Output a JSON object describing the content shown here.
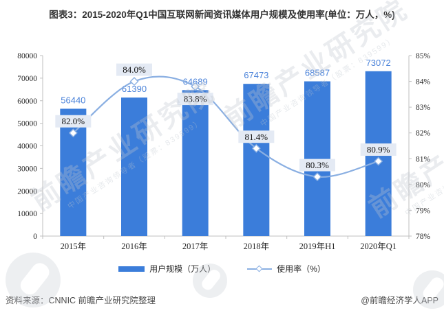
{
  "title": "图表3：2015-2020年Q1中国互联网新闻资讯媒体用户规模及使用率(单位：万人，%)",
  "chart_data": {
    "type": "combo",
    "title": "图表3：2015-2020年Q1中国互联网新闻资讯媒体用户规模及使用率(单位：万人，%)",
    "categories": [
      "2015年",
      "2016年",
      "2017年",
      "2018年",
      "2019年H1",
      "2020年Q1"
    ],
    "series": [
      {
        "name": "用户规模（万人）",
        "type": "bar",
        "axis": "left",
        "color": "#3b7dda",
        "values": [
          56440,
          61390,
          64689,
          67473,
          68587,
          73072
        ],
        "value_labels": [
          "56440",
          "61390",
          "64689",
          "67473",
          "68587",
          "73072"
        ]
      },
      {
        "name": "使用率（%）",
        "type": "line",
        "axis": "right",
        "color": "#8aafe2",
        "marker": "diamond",
        "values": [
          82.0,
          84.0,
          83.8,
          81.4,
          80.3,
          80.9
        ],
        "value_labels": [
          "82.0%",
          "84.0%",
          "83.8%",
          "81.4%",
          "80.3%",
          "80.9%"
        ],
        "label_positions": [
          "above",
          "above",
          "below",
          "above",
          "above",
          "above"
        ]
      }
    ],
    "left_axis": {
      "min": 0,
      "max": 80000,
      "step": 10000
    },
    "right_axis": {
      "min": 78,
      "max": 85,
      "step": 1,
      "suffix": "%"
    },
    "grid": false,
    "legend_position": "bottom"
  },
  "footer": {
    "source": "资料来源：CNNIC  前瞻产业研究院整理",
    "credit": "@前瞻经济学人APP"
  },
  "watermark": {
    "text": "前瞻产业研究院",
    "subtext": "中国产业咨询领导者（股票：839599）"
  },
  "colors": {
    "bar": "#3b7dda",
    "value_label": "#4a82d9",
    "line": "#8aafe2",
    "marker_fill": "#ffffff",
    "pct_box_bg": "#e4eaf4",
    "pct_text": "#111111",
    "axis_line": "#bfbfbf",
    "axis_text": "#262626"
  }
}
